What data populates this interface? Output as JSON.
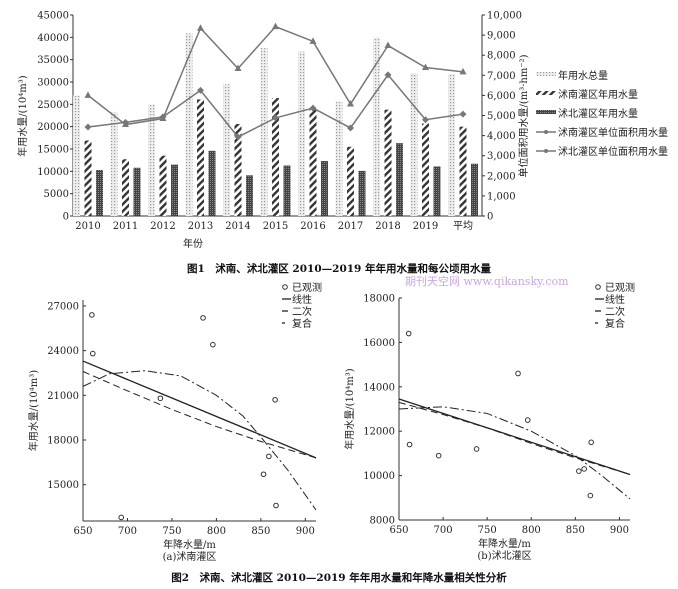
{
  "chart_data": [
    {
      "type": "bar",
      "title": "图1　沭南、沭北灌区 2010—2019 年年用水量和每公顷用水量",
      "xlabel": "年份",
      "ylabel": "年用水量/(10⁴m³)",
      "y2label": "单位面积用水量/(m³·hm⁻²)",
      "ylim": [
        0,
        45000
      ],
      "y2lim": [
        0,
        10000
      ],
      "yticks": [
        "0",
        "5000",
        "10000",
        "15000",
        "20000",
        "25000",
        "30000",
        "35000",
        "40000",
        "45000"
      ],
      "y2ticks": [
        "0",
        "1,000",
        "2,000",
        "3,000",
        "4,000",
        "5,000",
        "6,000",
        "7,000",
        "8,000",
        "9,000",
        "10,000"
      ],
      "categories": [
        "2010",
        "2011",
        "2012",
        "2013",
        "2014",
        "2015",
        "2016",
        "2017",
        "2018",
        "2019",
        "平均"
      ],
      "legend_position": "right",
      "series": [
        {
          "name": "年用水总量",
          "kind": "bar",
          "axis": "left",
          "values": [
            27000,
            23300,
            25000,
            40900,
            29500,
            37600,
            36800,
            25600,
            40000,
            32000,
            31800
          ]
        },
        {
          "name": "沭南灌区年用水量",
          "kind": "bar",
          "axis": "left",
          "values": [
            16900,
            12700,
            13500,
            26100,
            20600,
            26400,
            23800,
            15500,
            23800,
            20700,
            20000
          ]
        },
        {
          "name": "沭北灌区年用水量",
          "kind": "bar",
          "axis": "left",
          "values": [
            10300,
            10800,
            11500,
            14600,
            9100,
            11300,
            12300,
            10100,
            16300,
            11100,
            11700
          ]
        },
        {
          "name": "沭南灌区单位面积用水量",
          "kind": "line",
          "marker": "triangle",
          "axis": "right",
          "values": [
            6000,
            4550,
            4850,
            9340,
            7340,
            9420,
            8690,
            5570,
            8480,
            7390,
            7170
          ]
        },
        {
          "name": "沭北灌区单位面积用水量",
          "kind": "line",
          "marker": "diamond",
          "axis": "right",
          "values": [
            4430,
            4660,
            4930,
            6250,
            3930,
            4880,
            5370,
            4380,
            7020,
            4790,
            5070
          ]
        }
      ]
    },
    {
      "type": "scatter",
      "subtitle": "(a)沭南灌区",
      "xlabel": "年降水量/m",
      "ylabel": "年用水量/(10⁴m³)",
      "xlim": [
        650,
        912
      ],
      "ylim": [
        12560,
        27400
      ],
      "xticks": [
        "650",
        "700",
        "750",
        "800",
        "850",
        "900"
      ],
      "yticks": [
        "15000",
        "18000",
        "21000",
        "24000",
        "27000"
      ],
      "legend_position": "top-right",
      "legend": [
        "已观测",
        "线性",
        "二次",
        "复合"
      ],
      "observed": {
        "x": [
          660,
          661,
          693,
          737,
          785,
          796,
          853,
          859,
          866,
          867
        ],
        "y": [
          26400,
          23800,
          12800,
          20800,
          26200,
          24400,
          15700,
          16900,
          20700,
          13600
        ]
      },
      "fits": {
        "linear": {
          "x": [
            650,
            912
          ],
          "y": [
            23300,
            16800
          ]
        },
        "quadratic": {
          "x": [
            650,
            700,
            750,
            800,
            850,
            912
          ],
          "y": [
            22600,
            21300,
            20050,
            18900,
            17900,
            16800
          ]
        },
        "compound": {
          "x": [
            650,
            680,
            720,
            760,
            800,
            830,
            850,
            880,
            912
          ],
          "y": [
            21600,
            22450,
            22650,
            22300,
            21000,
            19600,
            18200,
            16000,
            13300
          ]
        }
      }
    },
    {
      "type": "scatter",
      "subtitle": "(b)沭北灌区",
      "xlabel": "年降水量/m",
      "ylabel": "年用水量/(10⁴m³)",
      "xlim": [
        650,
        912
      ],
      "ylim": [
        8000,
        18000
      ],
      "xticks": [
        "650",
        "700",
        "750",
        "800",
        "850",
        "900"
      ],
      "yticks": [
        "8000",
        "10000",
        "12000",
        "14000",
        "16000",
        "18000"
      ],
      "legend_position": "top-right",
      "legend": [
        "已观测",
        "线性",
        "二次",
        "复合"
      ],
      "observed": {
        "x": [
          661,
          662,
          695,
          738,
          785,
          796,
          854,
          860,
          867,
          868
        ],
        "y": [
          16400,
          11400,
          10900,
          11200,
          14600,
          12500,
          10200,
          10300,
          9100,
          11500
        ]
      },
      "fits": {
        "linear": {
          "x": [
            650,
            912
          ],
          "y": [
            13450,
            10050
          ]
        },
        "quadratic": {
          "x": [
            650,
            700,
            750,
            800,
            850,
            912
          ],
          "y": [
            13300,
            12750,
            12150,
            11450,
            10800,
            10050
          ]
        },
        "compound": {
          "x": [
            650,
            700,
            750,
            800,
            850,
            880,
            912
          ],
          "y": [
            13000,
            13100,
            12800,
            12000,
            10900,
            10000,
            8950
          ]
        }
      }
    }
  ],
  "figure2_caption": "图2　沭南、沭北灌区 2010—2019 年年用水量和年降水量相关性分析",
  "watermark": "期刊天空网 www.qikansky.com"
}
